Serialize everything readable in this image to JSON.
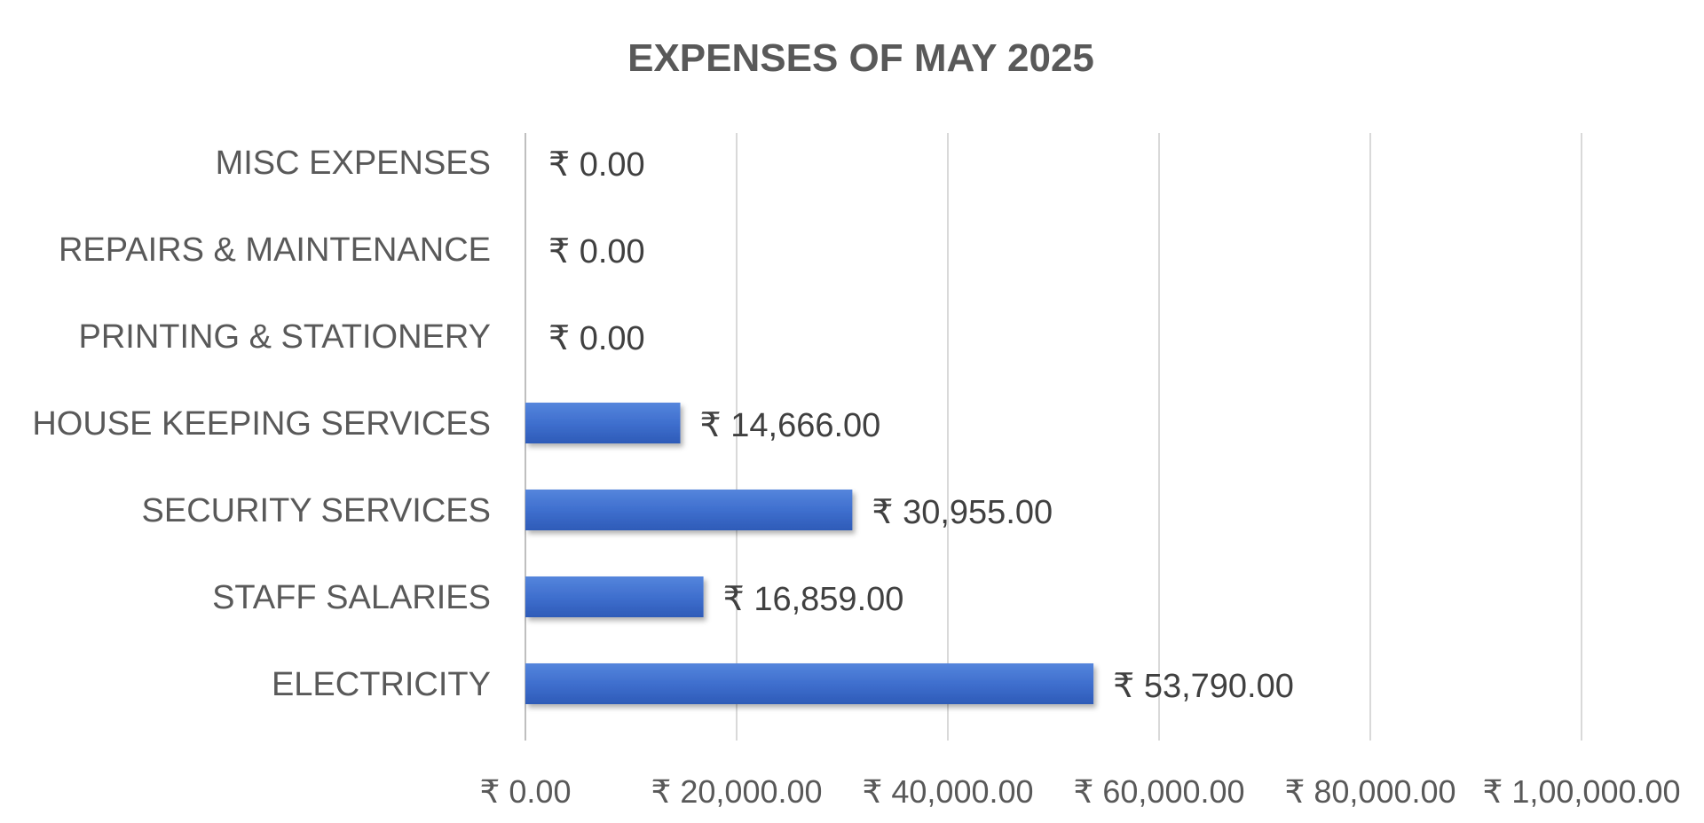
{
  "chart_data": {
    "type": "bar",
    "orientation": "horizontal",
    "title": "EXPENSES OF MAY 2025",
    "categories": [
      "MISC EXPENSES",
      "REPAIRS  & MAINTENANCE",
      "PRINTING & STATIONERY",
      "HOUSE KEEPING SERVICES",
      "SECURITY SERVICES",
      "STAFF SALARIES",
      "ELECTRICITY"
    ],
    "values": [
      0,
      0,
      0,
      14666,
      30955,
      16859,
      53790
    ],
    "value_labels": [
      "₹ 0.00",
      "₹ 0.00",
      "₹ 0.00",
      "₹ 14,666.00",
      "₹ 30,955.00",
      "₹ 16,859.00",
      "₹ 53,790.00"
    ],
    "x_ticks": [
      0,
      20000,
      40000,
      60000,
      80000,
      100000
    ],
    "x_tick_labels": [
      "₹ 0.00",
      "₹ 20,000.00",
      "₹ 40,000.00",
      "₹ 60,000.00",
      "₹ 80,000.00",
      "₹ 1,00,000.00"
    ],
    "xlim": [
      0,
      100000
    ],
    "xlabel": "",
    "ylabel": "",
    "grid": true,
    "legend": "none",
    "colors": {
      "bar": "#3f6fce",
      "bar_light": "#5585dc",
      "bar_dark": "#2e5bb8",
      "title": "#595959",
      "labels": "#595959",
      "grid": "#d9d9d9"
    }
  }
}
